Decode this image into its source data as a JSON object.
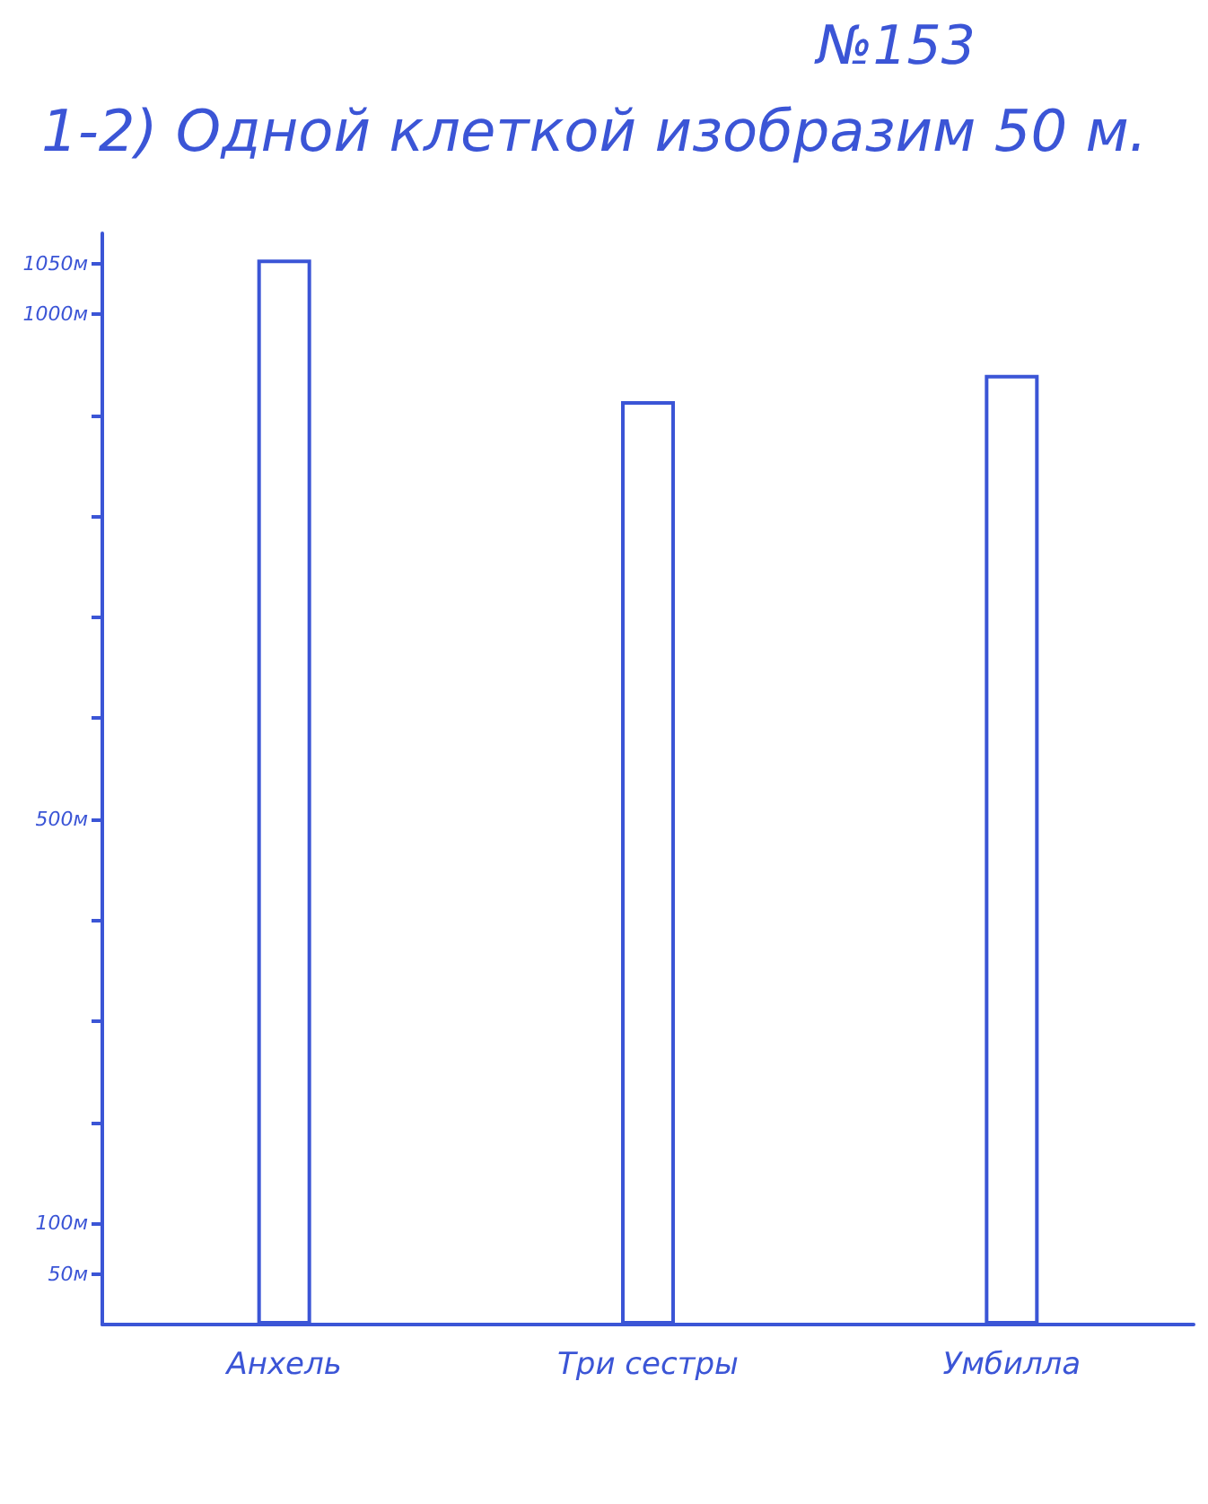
{
  "chart_data": {
    "type": "bar",
    "title": "№153",
    "subtitle": "1-2) Одной клеткой изобразим 50 м.",
    "categories": [
      "Анхель",
      "Три сестры",
      "Умбилла"
    ],
    "values": [
      1054,
      914,
      940
    ],
    "color": "#3b55d6",
    "ylim": [
      0,
      1080
    ],
    "yticks": [
      {
        "value": 50,
        "label": "50м"
      },
      {
        "value": 100,
        "label": "100м"
      },
      {
        "value": 200,
        "label": null
      },
      {
        "value": 300,
        "label": null
      },
      {
        "value": 400,
        "label": null
      },
      {
        "value": 500,
        "label": "500м"
      },
      {
        "value": 600,
        "label": null
      },
      {
        "value": 700,
        "label": null
      },
      {
        "value": 800,
        "label": null
      },
      {
        "value": 900,
        "label": null
      },
      {
        "value": 1000,
        "label": "1000м"
      },
      {
        "value": 1050,
        "label": "1050м"
      }
    ]
  }
}
